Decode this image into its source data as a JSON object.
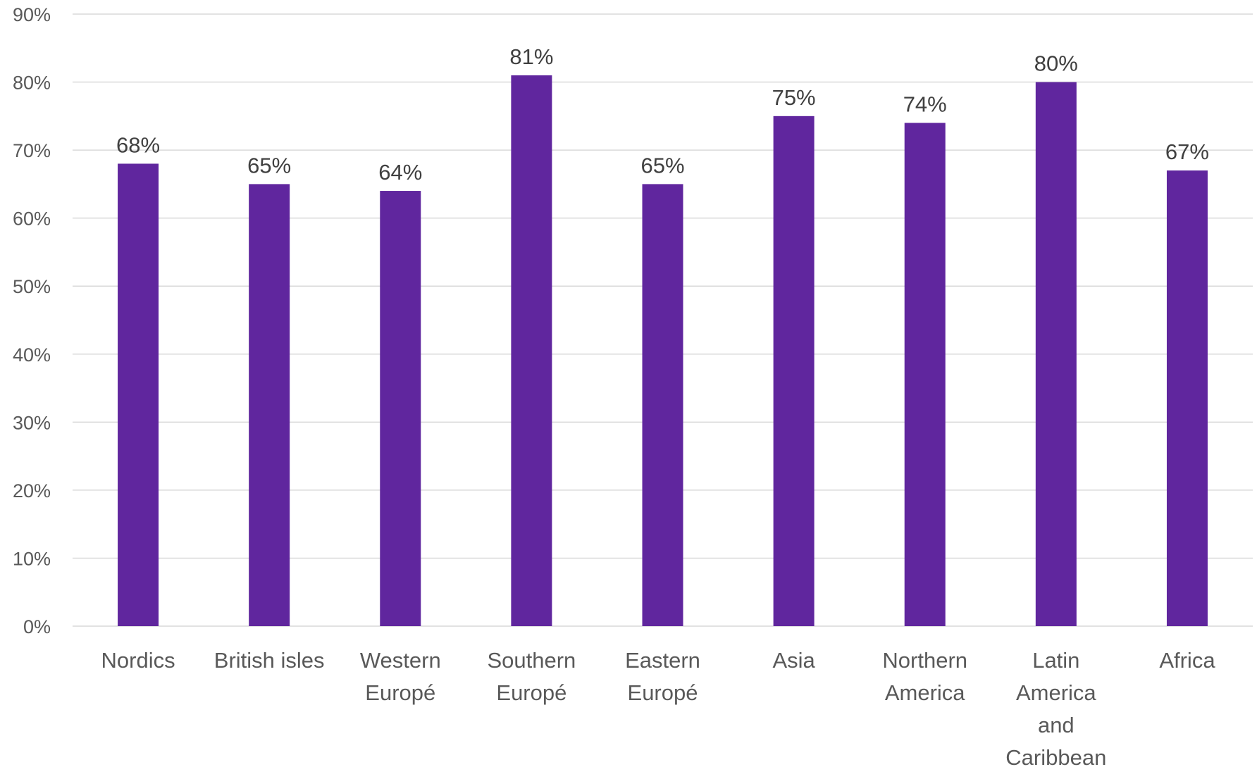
{
  "chart_data": {
    "type": "bar",
    "title": "",
    "xlabel": "",
    "ylabel": "",
    "categories": [
      [
        "Nordics"
      ],
      [
        "British isles"
      ],
      [
        "Western",
        "Europé"
      ],
      [
        "Southern",
        "Europé"
      ],
      [
        "Eastern",
        "Europé"
      ],
      [
        "Asia"
      ],
      [
        "Northern",
        "America"
      ],
      [
        "Latin",
        "America",
        "and",
        "Caribbean"
      ],
      [
        "Africa"
      ]
    ],
    "values": [
      68,
      65,
      64,
      81,
      65,
      75,
      74,
      80,
      67
    ],
    "data_labels": [
      "68%",
      "65%",
      "64%",
      "81%",
      "65%",
      "75%",
      "74%",
      "80%",
      "67%"
    ],
    "ylim": [
      0,
      90
    ],
    "y_ticks": [
      0,
      10,
      20,
      30,
      40,
      50,
      60,
      70,
      80,
      90
    ],
    "y_tick_labels": [
      "0%",
      "10%",
      "20%",
      "30%",
      "40%",
      "50%",
      "60%",
      "70%",
      "80%",
      "90%"
    ],
    "grid": true,
    "legend": "none",
    "bar_color": "#60269e"
  }
}
